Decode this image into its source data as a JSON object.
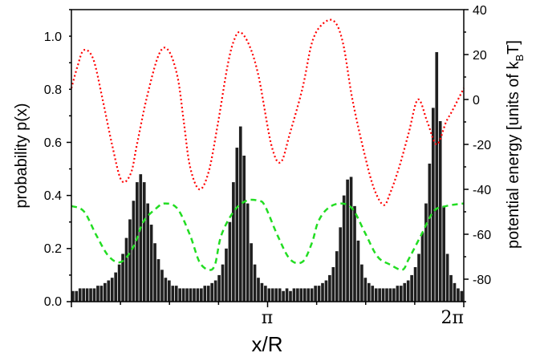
{
  "chart_data": {
    "type": "bar",
    "xlabel": "x/R",
    "ylabel": "probability p(x)",
    "y2label_main": "potential energy [units of k",
    "y2label_sub": "B",
    "y2label_end": "T]",
    "xlim": [
      0,
      6.2832
    ],
    "ylim": [
      0,
      1.1
    ],
    "y2lim": [
      -90,
      40
    ],
    "x_tick_labels": [
      "π",
      "2π"
    ],
    "y_ticks": [
      "0.0",
      "0.2",
      "0.4",
      "0.6",
      "0.8",
      "1.0"
    ],
    "y2_ticks": [
      "-80",
      "-60",
      "-40",
      "-20",
      "0",
      "20",
      "40"
    ],
    "colors": {
      "bars": "#1f1f1f",
      "potential": "#ff0000",
      "green": "#22dd22",
      "y2label": "#ff0000"
    },
    "series": [
      {
        "type": "bar",
        "bin_count": 110,
        "values": [
          0.04,
          0.04,
          0.05,
          0.05,
          0.05,
          0.05,
          0.05,
          0.06,
          0.06,
          0.07,
          0.08,
          0.09,
          0.11,
          0.14,
          0.18,
          0.24,
          0.31,
          0.38,
          0.45,
          0.48,
          0.45,
          0.37,
          0.29,
          0.22,
          0.16,
          0.12,
          0.09,
          0.08,
          0.06,
          0.06,
          0.05,
          0.05,
          0.05,
          0.05,
          0.05,
          0.05,
          0.05,
          0.06,
          0.06,
          0.07,
          0.08,
          0.1,
          0.14,
          0.2,
          0.3,
          0.45,
          0.58,
          0.66,
          0.55,
          0.37,
          0.22,
          0.14,
          0.09,
          0.07,
          0.06,
          0.05,
          0.05,
          0.05,
          0.05,
          0.04,
          0.05,
          0.04,
          0.05,
          0.05,
          0.05,
          0.05,
          0.05,
          0.05,
          0.06,
          0.06,
          0.07,
          0.08,
          0.1,
          0.13,
          0.19,
          0.28,
          0.4,
          0.46,
          0.47,
          0.36,
          0.23,
          0.14,
          0.09,
          0.07,
          0.06,
          0.05,
          0.05,
          0.05,
          0.05,
          0.05,
          0.05,
          0.06,
          0.06,
          0.07,
          0.08,
          0.1,
          0.13,
          0.18,
          0.26,
          0.37,
          0.52,
          0.73,
          0.94,
          0.68,
          0.36,
          0.18,
          0.1,
          0.07,
          0.05,
          0.04
        ]
      },
      {
        "type": "line",
        "axis": "right",
        "style": "dotted",
        "x": [
          0,
          0.1,
          0.2,
          0.35,
          0.5,
          0.65,
          0.8,
          0.95,
          1.05,
          1.2,
          1.4,
          1.55,
          1.7,
          1.8,
          1.9,
          2.05,
          2.2,
          2.35,
          2.5,
          2.6,
          2.7,
          2.85,
          3.0,
          3.2,
          3.35,
          3.5,
          3.7,
          3.85,
          4.0,
          4.2,
          4.35,
          4.5,
          4.7,
          4.85,
          5.0,
          5.1,
          5.25,
          5.4,
          5.55,
          5.7,
          5.85,
          6.0,
          6.1,
          6.2832
        ],
        "y": [
          5,
          15,
          22,
          18,
          0,
          -20,
          -36,
          -33,
          -20,
          0,
          20,
          22,
          10,
          -10,
          -30,
          -40,
          -32,
          -10,
          15,
          26,
          30,
          24,
          10,
          -20,
          -28,
          -15,
          5,
          25,
          33,
          35,
          25,
          0,
          -25,
          -40,
          -47,
          -42,
          -30,
          -15,
          0,
          -10,
          -20,
          -10,
          -5,
          5
        ]
      },
      {
        "type": "line",
        "axis": "left",
        "style": "dashed",
        "x": [
          0,
          0.2,
          0.4,
          0.6,
          0.8,
          1.0,
          1.15,
          1.35,
          1.5,
          1.7,
          1.9,
          2.05,
          2.2,
          2.3,
          2.4,
          2.6,
          2.8,
          3.0,
          3.1,
          3.3,
          3.5,
          3.7,
          3.85,
          3.95,
          4.1,
          4.3,
          4.5,
          4.7,
          4.9,
          5.1,
          5.3,
          5.4,
          5.6,
          5.8,
          6.0,
          6.2832
        ],
        "y": [
          0.36,
          0.34,
          0.25,
          0.17,
          0.15,
          0.21,
          0.3,
          0.35,
          0.37,
          0.35,
          0.25,
          0.15,
          0.12,
          0.14,
          0.25,
          0.34,
          0.38,
          0.38,
          0.36,
          0.25,
          0.16,
          0.15,
          0.22,
          0.3,
          0.35,
          0.37,
          0.35,
          0.26,
          0.17,
          0.14,
          0.12,
          0.16,
          0.25,
          0.34,
          0.36,
          0.37
        ]
      }
    ]
  }
}
